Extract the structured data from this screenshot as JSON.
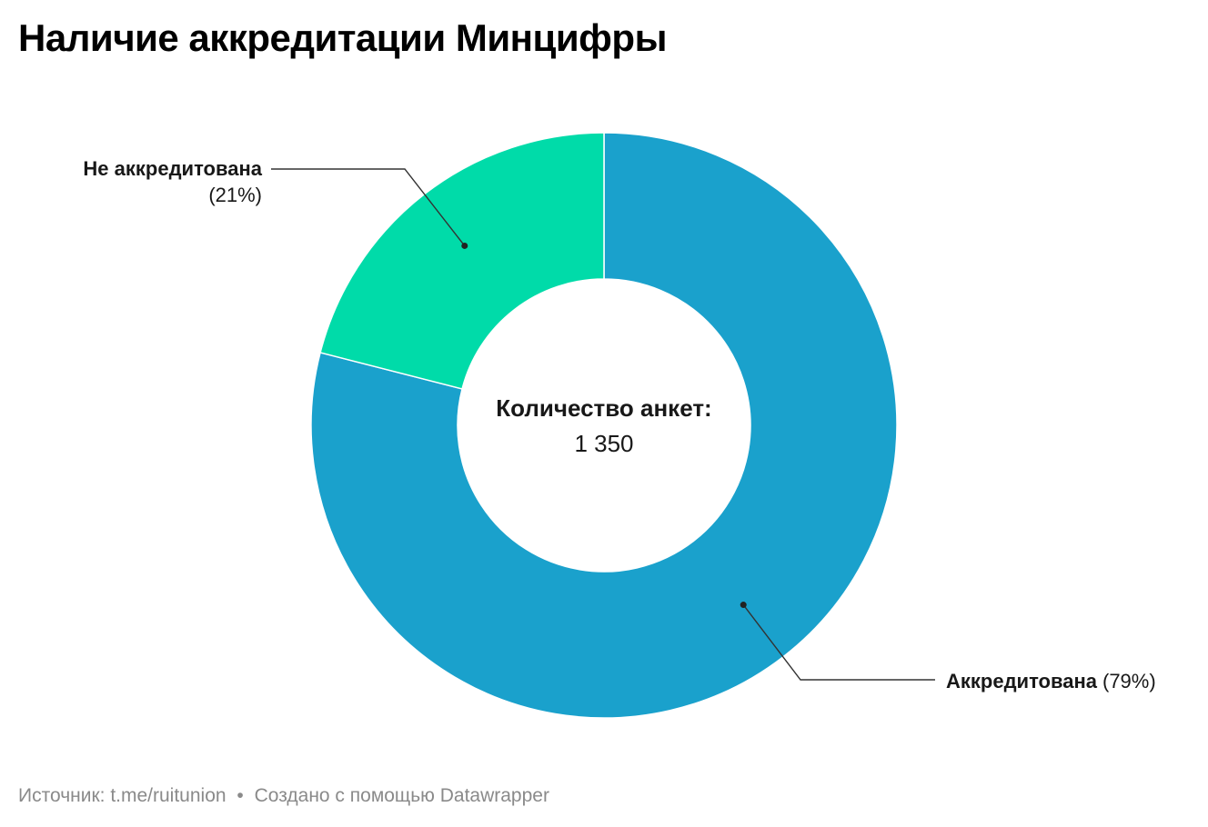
{
  "chart_data": {
    "type": "pie",
    "title": "Наличие аккредитации Минцифры",
    "center_label": "Количество анкет:",
    "center_value": "1 350",
    "slices": [
      {
        "label": "Аккредитована",
        "percent_label": "(79%)",
        "value": 79,
        "color": "#1aa1cc"
      },
      {
        "label": "Не аккредитована",
        "percent_label": "(21%)",
        "value": 21,
        "color": "#00dba9"
      }
    ]
  },
  "footer": {
    "source_label": "Источник:",
    "source_value": "t.me/ruitunion",
    "separator": "•",
    "credit": "Создано с помощью Datawrapper"
  }
}
